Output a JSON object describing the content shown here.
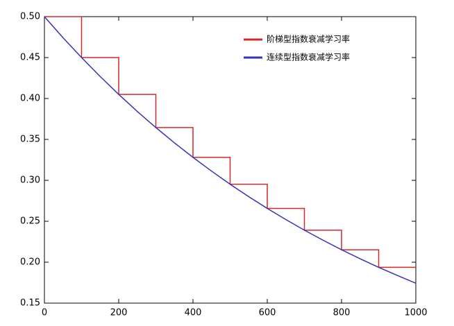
{
  "chart_data": {
    "type": "line",
    "xlim": [
      0,
      1000
    ],
    "xticks": [
      0,
      200,
      400,
      600,
      800,
      1000
    ],
    "ylim": [
      0.15,
      0.5
    ],
    "yticks": [
      {
        "value": 0.15,
        "label": "0.15"
      },
      {
        "value": 0.2,
        "label": "0.20"
      },
      {
        "value": 0.25,
        "label": "0.25"
      },
      {
        "value": 0.3,
        "label": "0.30"
      },
      {
        "value": 0.35,
        "label": "0.35"
      },
      {
        "value": 0.4,
        "label": "0.40"
      },
      {
        "value": 0.45,
        "label": "0.45"
      },
      {
        "value": 0.5,
        "label": "0.50"
      }
    ],
    "legend": "upper right",
    "series": [
      {
        "name": "阶梯型指数衰减学习率",
        "color": "#d62728",
        "x": [
          0,
          100,
          100,
          200,
          200,
          300,
          300,
          400,
          400,
          500,
          500,
          600,
          600,
          700,
          700,
          800,
          800,
          900,
          900,
          1000
        ],
        "values": [
          0.5,
          0.5,
          0.45,
          0.45,
          0.405,
          0.405,
          0.3645,
          0.3645,
          0.3281,
          0.3281,
          0.2952,
          0.2952,
          0.2657,
          0.2657,
          0.2391,
          0.2391,
          0.2152,
          0.2152,
          0.1937,
          0.1937
        ]
      },
      {
        "name": "连续型指数衰减学习率",
        "color": "#3333bb",
        "x": [
          0,
          50,
          100,
          150,
          200,
          250,
          300,
          350,
          400,
          450,
          500,
          550,
          600,
          650,
          700,
          750,
          800,
          850,
          900,
          950,
          1000
        ],
        "values": [
          0.5,
          0.4743,
          0.45,
          0.4269,
          0.405,
          0.3842,
          0.3645,
          0.3458,
          0.3281,
          0.3113,
          0.2952,
          0.2801,
          0.2657,
          0.2521,
          0.2391,
          0.2269,
          0.2152,
          0.2042,
          0.1937,
          0.1838,
          0.1743
        ]
      }
    ]
  }
}
